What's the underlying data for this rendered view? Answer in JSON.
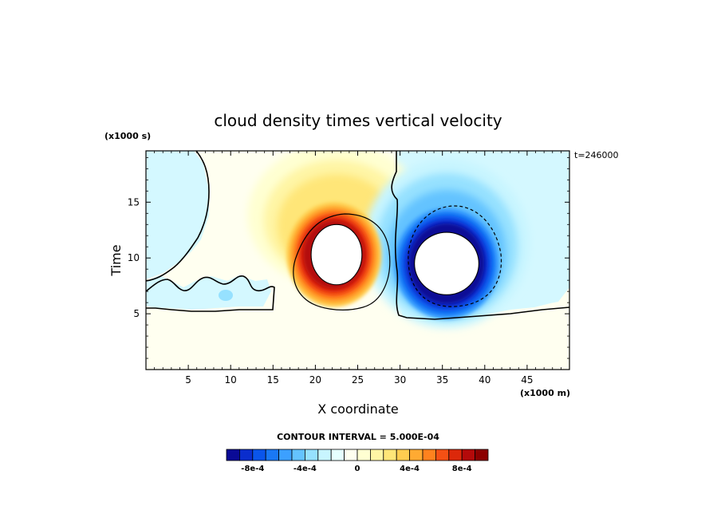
{
  "chart_data": {
    "type": "heatmap",
    "title": "cloud density times vertical velocity",
    "xlabel": "X coordinate",
    "ylabel": "Time",
    "x_unit": "(x1000 m)",
    "y_unit": "(x1000 s)",
    "time_label": "t=246000",
    "xlim": [
      0,
      50
    ],
    "ylim": [
      0,
      19.6
    ],
    "x_ticks": [
      5,
      10,
      15,
      20,
      25,
      30,
      35,
      40,
      45
    ],
    "y_ticks": [
      5,
      10,
      15
    ],
    "contour_interval": "CONTOUR INTERVAL = 5.000E-04",
    "colorbar": {
      "labels": [
        "-8e-4",
        "-4e-4",
        "0",
        "4e-4",
        "8e-4"
      ],
      "label_positions": [
        -0.0008,
        -0.0004,
        0,
        0.0004,
        0.0008
      ],
      "range": [
        -0.001,
        0.001
      ],
      "colors": [
        "#0a0a96",
        "#0a2dcd",
        "#0a55eb",
        "#1978f5",
        "#3ca0ff",
        "#64c3ff",
        "#96e1ff",
        "#c8f5ff",
        "#e6ffff",
        "#fffff0",
        "#ffffd2",
        "#fff5a5",
        "#ffe678",
        "#ffcd50",
        "#ffaa32",
        "#ff821e",
        "#f55014",
        "#dc280a",
        "#b40a0a",
        "#8c0000"
      ]
    },
    "features": [
      {
        "name": "positive-core",
        "center": [
          22.5,
          10.3
        ],
        "radius_x": 3.0,
        "radius_y": 2.7,
        "peak": "above 1e-3",
        "fill": "#ffffff"
      },
      {
        "name": "negative-core",
        "center": [
          35.5,
          9.5
        ],
        "radius_x": 3.8,
        "radius_y": 2.8,
        "peak": "below -1e-3",
        "fill": "#ffffff"
      }
    ],
    "colors": {
      "positive": "#dc280a",
      "negative": "#0a2dcd",
      "zero": "#fffff0",
      "undefined": "#ffffff"
    }
  }
}
